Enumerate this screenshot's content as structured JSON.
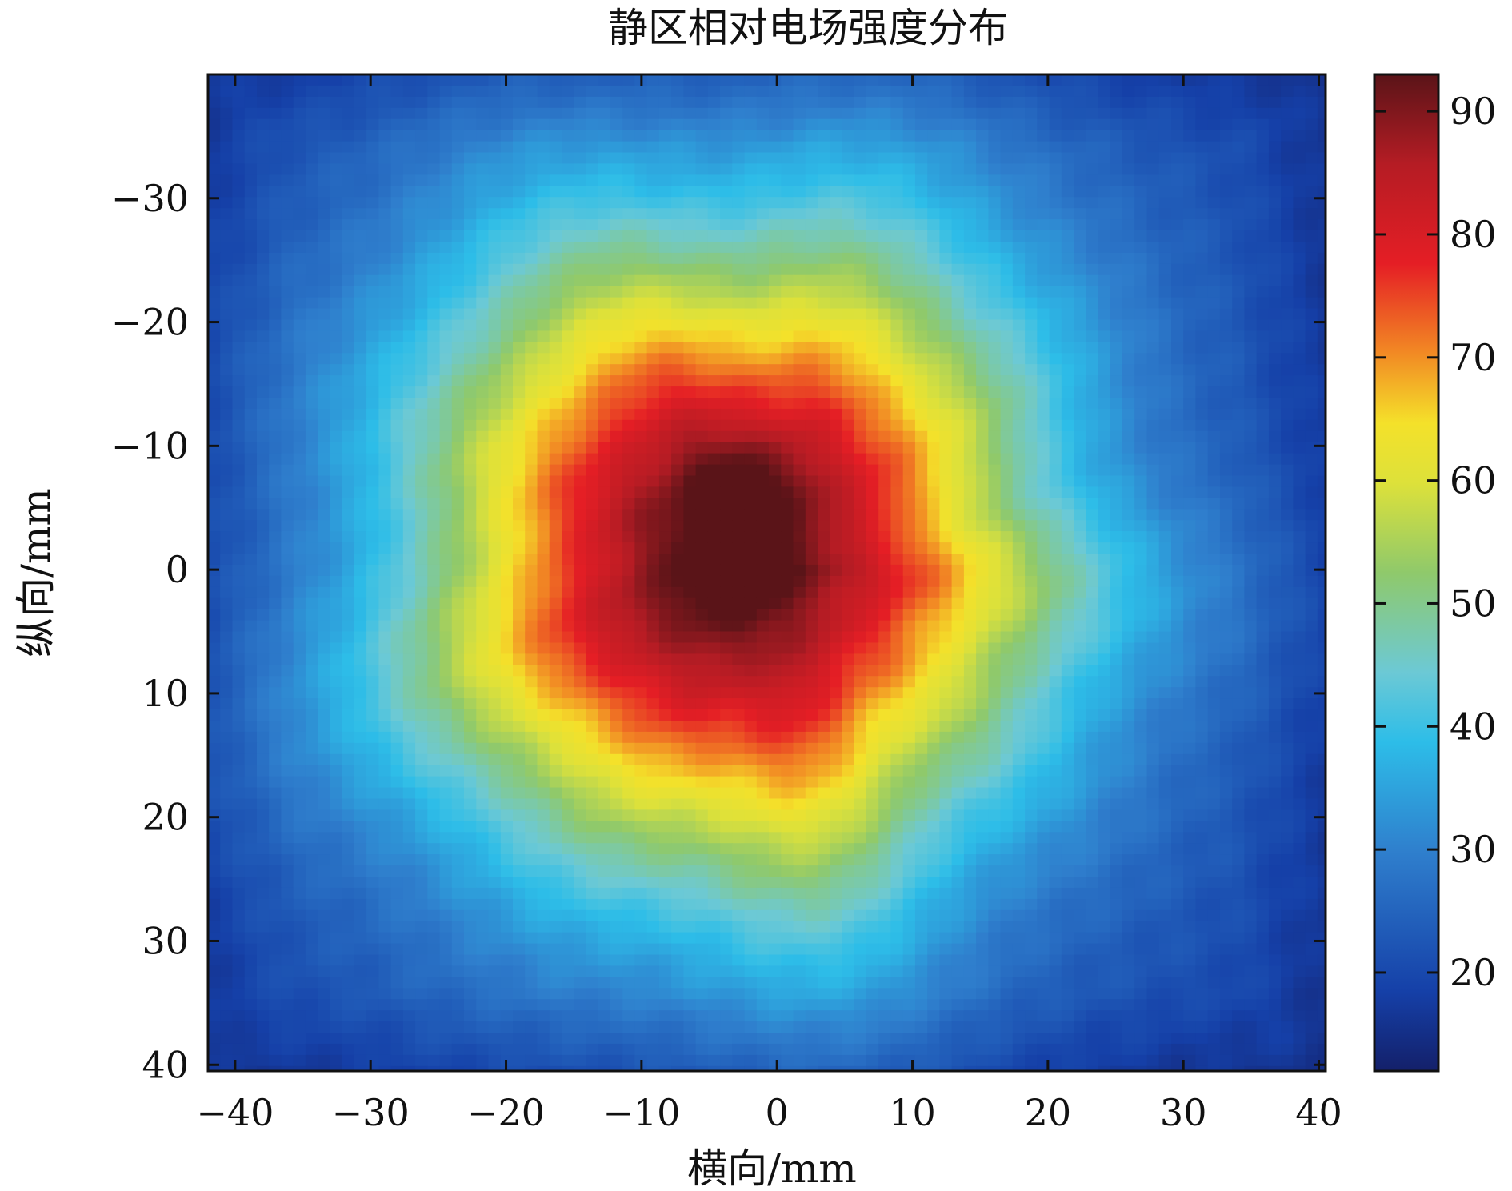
{
  "chart_data": {
    "type": "heatmap",
    "title": "静区相对电场强度分布",
    "xlabel": "横向/mm",
    "ylabel": "纵向/mm",
    "xlim": [
      -42,
      40.5
    ],
    "ylim": [
      -40,
      40.5
    ],
    "y_axis_inverted": true,
    "x_ticks": [
      -40,
      -30,
      -20,
      -10,
      0,
      10,
      20,
      30,
      40
    ],
    "x_tick_labels": [
      "−40",
      "−30",
      "−20",
      "−10",
      "0",
      "10",
      "20",
      "30",
      "40"
    ],
    "y_ticks": [
      -30,
      -20,
      -10,
      0,
      10,
      20,
      30,
      40
    ],
    "y_tick_labels": [
      "−30",
      "−20",
      "−10",
      "0",
      "10",
      "20",
      "30",
      "40"
    ],
    "colorbar": {
      "range": [
        12,
        93
      ],
      "ticks": [
        20,
        30,
        40,
        50,
        60,
        70,
        80,
        90
      ],
      "tick_labels": [
        "20",
        "30",
        "40",
        "50",
        "60",
        "70",
        "80",
        "90"
      ],
      "colormap": "jet"
    },
    "field": {
      "background": 24,
      "peak_value": 91,
      "peak_location": [
        -3,
        0
      ],
      "secondary_peak_value": 86,
      "secondary_peak_location": [
        -2.5,
        -7
      ],
      "contours": [
        {
          "level": 30,
          "x_extent": [
            -31,
            26
          ],
          "y_extent": [
            -37,
            34
          ]
        },
        {
          "level": 40,
          "x_extent": [
            -27,
            24
          ],
          "y_extent": [
            -33,
            31
          ]
        },
        {
          "level": 60,
          "x_extent": [
            -20,
            14
          ],
          "y_extent": [
            -22,
            18
          ]
        },
        {
          "level": 80,
          "x_extent": [
            -12,
            7
          ],
          "y_extent": [
            -12,
            11
          ]
        }
      ]
    }
  }
}
